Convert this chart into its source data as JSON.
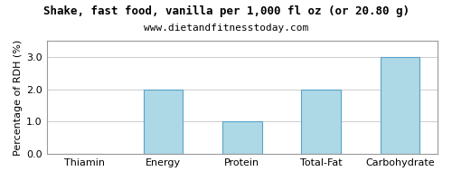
{
  "title": "Shake, fast food, vanilla per 1,000 fl oz (or 20.80 g)",
  "subtitle": "www.dietandfitnesstoday.com",
  "categories": [
    "Thiamin",
    "Energy",
    "Protein",
    "Total-Fat",
    "Carbohydrate"
  ],
  "values": [
    0.0,
    2.0,
    1.0,
    2.0,
    3.0
  ],
  "bar_color": "#add8e6",
  "bar_edge_color": "#5ba3c9",
  "ylabel": "Percentage of RDH (%)",
  "ylim": [
    0,
    3.5
  ],
  "yticks": [
    0.0,
    1.0,
    2.0,
    3.0
  ],
  "background_color": "#ffffff",
  "title_fontsize": 9,
  "subtitle_fontsize": 8,
  "axis_fontsize": 8,
  "tick_fontsize": 8,
  "grid_color": "#cccccc"
}
